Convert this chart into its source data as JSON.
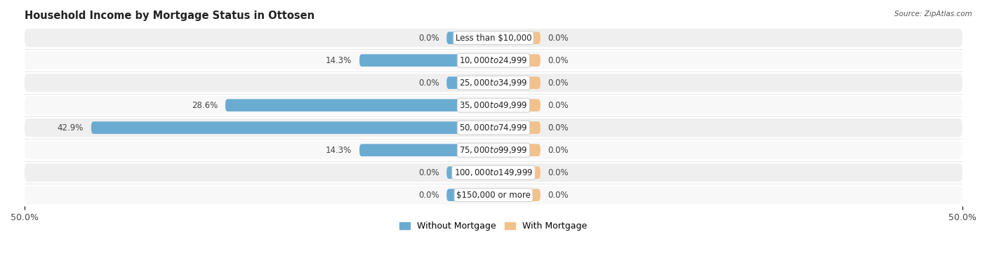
{
  "title": "Household Income by Mortgage Status in Ottosen",
  "source": "Source: ZipAtlas.com",
  "categories": [
    "Less than $10,000",
    "$10,000 to $24,999",
    "$25,000 to $34,999",
    "$35,000 to $49,999",
    "$50,000 to $74,999",
    "$75,000 to $99,999",
    "$100,000 to $149,999",
    "$150,000 or more"
  ],
  "without_mortgage": [
    0.0,
    14.3,
    0.0,
    28.6,
    42.9,
    14.3,
    0.0,
    0.0
  ],
  "with_mortgage": [
    0.0,
    0.0,
    0.0,
    0.0,
    0.0,
    0.0,
    0.0,
    0.0
  ],
  "xlim": [
    -50,
    50
  ],
  "color_without": "#6AABD2",
  "color_with": "#F2C18C",
  "row_bg_color": "#EFEFEF",
  "row_bg_alt": "#F8F8F8",
  "label_fontsize": 8.5,
  "title_fontsize": 10.5,
  "axis_tick_fontsize": 9,
  "legend_fontsize": 9,
  "stub_size": 5.0
}
